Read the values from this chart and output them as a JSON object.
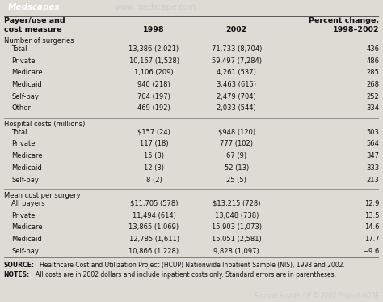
{
  "header_logo": "Medscapes",
  "header_url": "www.medscape.com",
  "header_bg": "#1a2a4a",
  "footer_bar_bg": "#1a2a4a",
  "orange_line": "#e87020",
  "col_headers_line1": [
    "Payer/use and",
    "",
    "",
    "Percent change,"
  ],
  "col_headers_line2": [
    "cost measure",
    "1998",
    "2002",
    "1998–2002"
  ],
  "sections": [
    {
      "section_title": "Number of surgeries",
      "rows": [
        [
          "Total",
          "13,386 (2,021)",
          "71,733 (8,704)",
          "436"
        ],
        [
          "Private",
          "10,167 (1,528)",
          "59,497 (7,284)",
          "486"
        ],
        [
          "Medicare",
          "1,106 (209)",
          "4,261 (537)",
          "285"
        ],
        [
          "Medicaid",
          "940 (218)",
          "3,463 (615)",
          "268"
        ],
        [
          "Self-pay",
          "704 (197)",
          "2,479 (704)",
          "252"
        ],
        [
          "Other",
          "469 (192)",
          "2,033 (544)",
          "334"
        ]
      ]
    },
    {
      "section_title": "Hospital costs (millions)",
      "rows": [
        [
          "Total",
          "$157 (24)",
          "$948 (120)",
          "503"
        ],
        [
          "Private",
          "117 (18)",
          "777 (102)",
          "564"
        ],
        [
          "Medicare",
          "15 (3)",
          "67 (9)",
          "347"
        ],
        [
          "Medicaid",
          "12 (3)",
          "52 (13)",
          "333"
        ],
        [
          "Self-pay",
          "8 (2)",
          "25 (5)",
          "213"
        ]
      ]
    },
    {
      "section_title": "Mean cost per surgery",
      "rows": [
        [
          "All payers",
          "$11,705 (578)",
          "$13,215 (728)",
          "12.9"
        ],
        [
          "Private",
          "11,494 (614)",
          "13,048 (738)",
          "13.5"
        ],
        [
          "Medicare",
          "13,865 (1,069)",
          "15,903 (1,073)",
          "14.6"
        ],
        [
          "Medicaid",
          "12,785 (1,611)",
          "15,051 (2,581)",
          "17.7"
        ],
        [
          "Self-pay",
          "10,866 (1,228)",
          "9,828 (1,097)",
          "−9.6"
        ]
      ]
    }
  ],
  "source_text": "SOURCE: Healthcare Cost and Utilization Project (HCUP) Nationwide Inpatient Sample (NIS), 1998 and 2002.",
  "notes_text": "NOTES: All costs are in 2002 dollars and include inpatient costs only. Standard errors are in parentheses.",
  "footer_text": "Source: Health Aff © 2005 Project HOPE",
  "bg_color": "#dedad4",
  "text_color": "#111111",
  "indent": "    "
}
